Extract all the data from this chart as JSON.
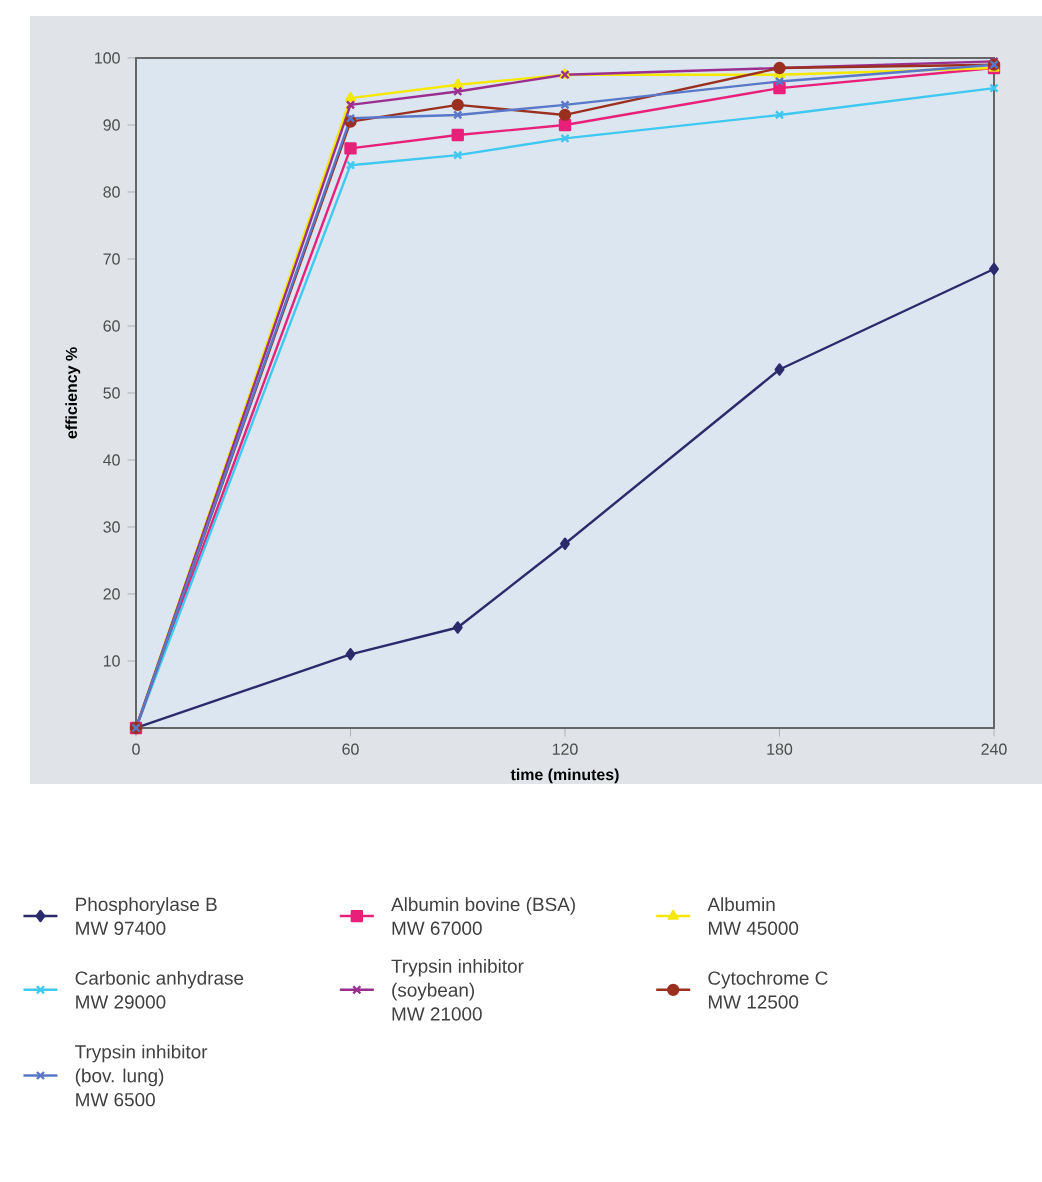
{
  "chart_data": {
    "type": "line",
    "xlabel": "time (minutes)",
    "ylabel": "efficiency %",
    "x": [
      0,
      60,
      90,
      120,
      180,
      240
    ],
    "xlim": [
      0,
      240
    ],
    "ylim": [
      0,
      100
    ],
    "xticks": [
      0,
      60,
      120,
      180,
      240
    ],
    "yticks": [
      10,
      20,
      30,
      40,
      50,
      60,
      70,
      80,
      90,
      100
    ],
    "legend": "bottom",
    "grid": false,
    "series": [
      {
        "name": "Phosphorylase B\nMW 97400",
        "color": "#2b2a6b",
        "marker": "diamond",
        "values": [
          0,
          11,
          15,
          27.5,
          53.5,
          68.5
        ]
      },
      {
        "name": "Albumin bovine (BSA)\nMW 67000",
        "color": "#e8207a",
        "marker": "square",
        "values": [
          0,
          86.5,
          88.5,
          90,
          95.5,
          98.5
        ]
      },
      {
        "name": "Albumin\nMW 45000",
        "color": "#f5e800",
        "marker": "triangle",
        "values": [
          0,
          94,
          96,
          97.5,
          97.5,
          98.5
        ]
      },
      {
        "name": "Carbonic anhydrase\nMW 29000",
        "color": "#3fc8f0",
        "marker": "cross",
        "values": [
          0,
          84,
          85.5,
          88,
          91.5,
          95.5
        ]
      },
      {
        "name": "Trypsin inhibitor\n(soybean)\nMW 21000",
        "color": "#9b2f8f",
        "marker": "cross",
        "values": [
          0,
          93,
          95,
          97.5,
          98.5,
          99.5
        ]
      },
      {
        "name": "Cytochrome C\nMW 12500",
        "color": "#9b3020",
        "marker": "circle",
        "values": [
          0,
          90.5,
          93,
          91.5,
          98.5,
          99
        ]
      },
      {
        "name": "Trypsin inhibitor\n(bov. lung)\nMW 6500",
        "color": "#5a78c8",
        "marker": "cross",
        "values": [
          0,
          91,
          91.5,
          93,
          96.5,
          99
        ]
      }
    ]
  }
}
